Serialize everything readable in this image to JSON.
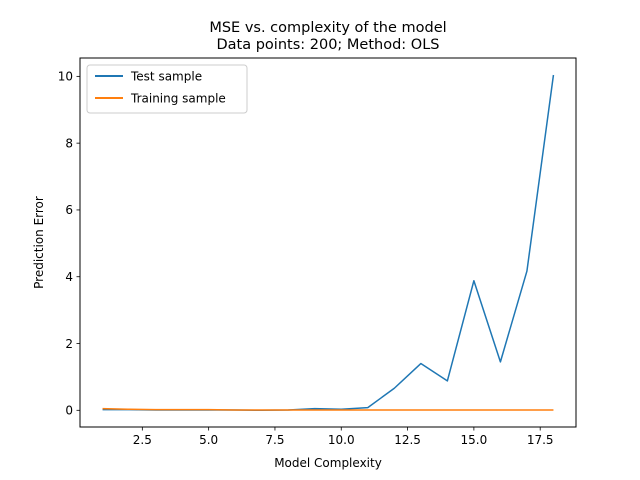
{
  "chart_data": {
    "type": "line",
    "title": "MSE vs. complexity of the model",
    "subtitle": "Data points: 200; Method: OLS",
    "xlabel": "Model Complexity",
    "ylabel": "Prediction Error",
    "xlim": [
      0.15,
      18.85
    ],
    "ylim": [
      -0.5,
      10.55
    ],
    "x_ticks": [
      2.5,
      5.0,
      7.5,
      10.0,
      12.5,
      15.0,
      17.5
    ],
    "x_tick_labels": [
      "2.5",
      "5.0",
      "7.5",
      "10.0",
      "12.5",
      "15.0",
      "17.5"
    ],
    "y_ticks": [
      0,
      2,
      4,
      6,
      8,
      10
    ],
    "y_tick_labels": [
      "0",
      "2",
      "4",
      "6",
      "8",
      "10"
    ],
    "grid": false,
    "legend_position": "upper-left",
    "x": [
      1,
      2,
      3,
      4,
      5,
      6,
      7,
      8,
      9,
      10,
      11,
      12,
      13,
      14,
      15,
      16,
      17,
      18
    ],
    "series": [
      {
        "name": "Test sample",
        "color": "#1f77b4",
        "values": [
          0.02,
          0.02,
          0.01,
          0.01,
          0.01,
          0.01,
          0.0,
          0.01,
          0.05,
          0.03,
          0.08,
          0.66,
          1.4,
          0.88,
          3.88,
          1.45,
          4.17,
          10.04
        ]
      },
      {
        "name": "Training sample",
        "color": "#ff7f0e",
        "values": [
          0.05,
          0.03,
          0.02,
          0.02,
          0.02,
          0.01,
          0.01,
          0.01,
          0.01,
          0.01,
          0.01,
          0.01,
          0.01,
          0.01,
          0.01,
          0.01,
          0.01,
          0.01
        ]
      }
    ]
  }
}
